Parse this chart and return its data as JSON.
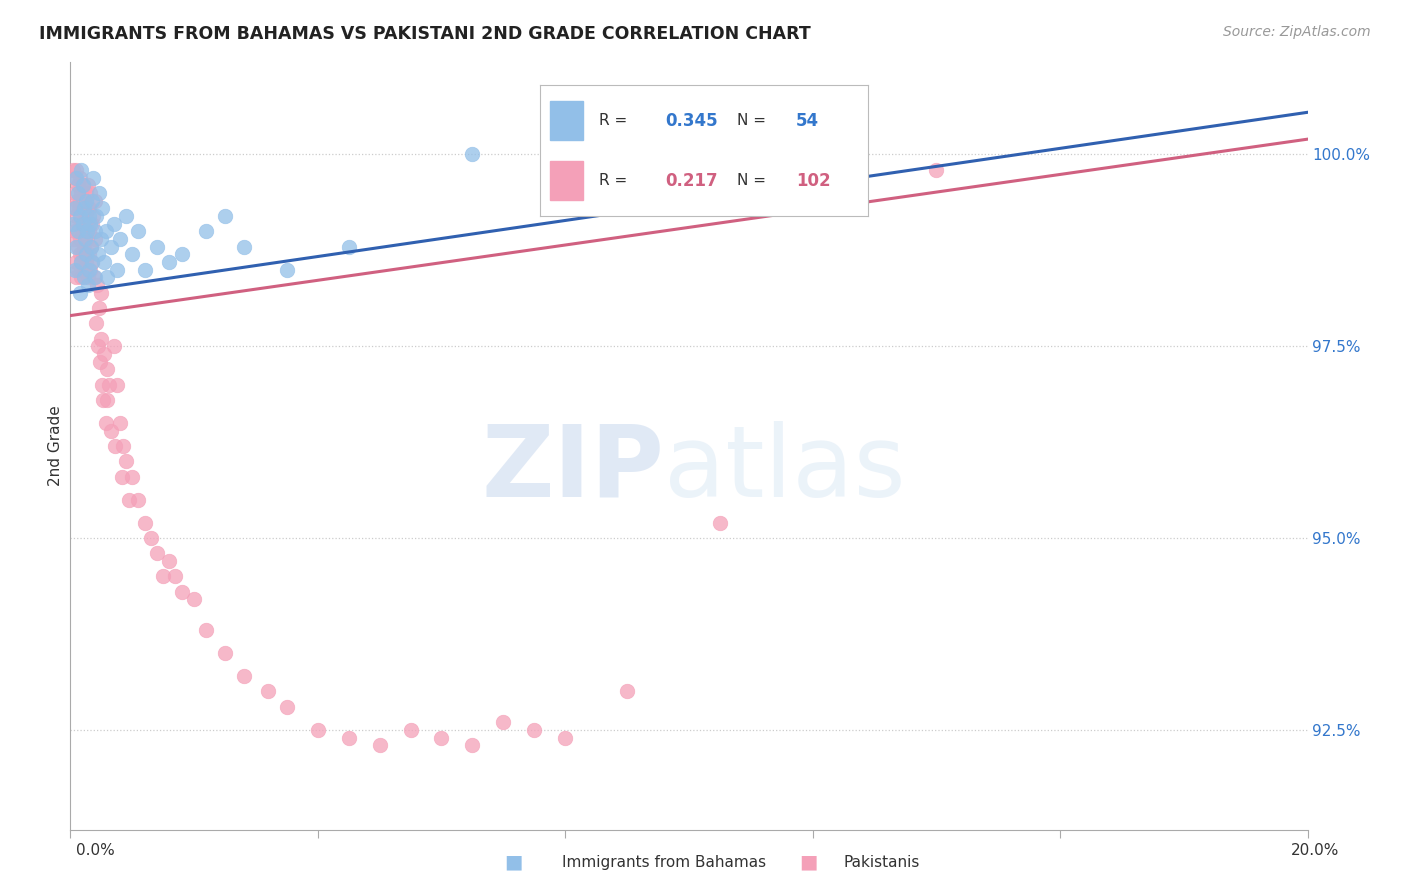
{
  "title": "IMMIGRANTS FROM BAHAMAS VS PAKISTANI 2ND GRADE CORRELATION CHART",
  "source": "Source: ZipAtlas.com",
  "ylabel": "2nd Grade",
  "xmin": 0.0,
  "xmax": 20.0,
  "ymin": 91.2,
  "ymax": 101.2,
  "blue_color": "#92bfe8",
  "pink_color": "#f4a0b8",
  "blue_line_color": "#3060b0",
  "pink_line_color": "#d06080",
  "blue_R": 0.345,
  "blue_N": 54,
  "pink_R": 0.217,
  "pink_N": 102,
  "blue_scatter_x": [
    0.05,
    0.07,
    0.08,
    0.1,
    0.1,
    0.12,
    0.13,
    0.15,
    0.15,
    0.17,
    0.18,
    0.2,
    0.2,
    0.22,
    0.22,
    0.23,
    0.25,
    0.25,
    0.27,
    0.28,
    0.3,
    0.3,
    0.32,
    0.33,
    0.35,
    0.35,
    0.37,
    0.4,
    0.4,
    0.42,
    0.45,
    0.47,
    0.5,
    0.52,
    0.55,
    0.58,
    0.6,
    0.65,
    0.7,
    0.75,
    0.8,
    0.9,
    1.0,
    1.1,
    1.2,
    1.4,
    1.6,
    1.8,
    2.2,
    2.5,
    2.8,
    3.5,
    4.5,
    6.5
  ],
  "blue_scatter_y": [
    99.1,
    98.5,
    99.3,
    98.8,
    99.7,
    99.0,
    99.5,
    98.2,
    99.2,
    98.6,
    99.8,
    99.1,
    99.6,
    98.4,
    99.3,
    98.9,
    99.4,
    98.7,
    99.0,
    98.3,
    99.2,
    98.5,
    99.1,
    98.8,
    99.4,
    98.6,
    99.7,
    99.0,
    98.4,
    99.2,
    98.7,
    99.5,
    98.9,
    99.3,
    98.6,
    99.0,
    98.4,
    98.8,
    99.1,
    98.5,
    98.9,
    99.2,
    98.7,
    99.0,
    98.5,
    98.8,
    98.6,
    98.7,
    99.0,
    99.2,
    98.8,
    98.5,
    98.8,
    100.0
  ],
  "pink_scatter_x": [
    0.03,
    0.05,
    0.06,
    0.07,
    0.08,
    0.08,
    0.09,
    0.1,
    0.1,
    0.1,
    0.11,
    0.12,
    0.12,
    0.13,
    0.13,
    0.14,
    0.15,
    0.15,
    0.15,
    0.16,
    0.17,
    0.17,
    0.18,
    0.18,
    0.2,
    0.2,
    0.2,
    0.22,
    0.22,
    0.23,
    0.23,
    0.25,
    0.25,
    0.25,
    0.27,
    0.27,
    0.28,
    0.28,
    0.3,
    0.3,
    0.3,
    0.32,
    0.32,
    0.33,
    0.35,
    0.35,
    0.37,
    0.38,
    0.4,
    0.4,
    0.42,
    0.43,
    0.45,
    0.47,
    0.48,
    0.5,
    0.5,
    0.52,
    0.53,
    0.55,
    0.58,
    0.6,
    0.6,
    0.63,
    0.65,
    0.7,
    0.73,
    0.75,
    0.8,
    0.83,
    0.85,
    0.9,
    0.95,
    1.0,
    1.1,
    1.2,
    1.3,
    1.4,
    1.5,
    1.6,
    1.7,
    1.8,
    2.0,
    2.2,
    2.5,
    2.8,
    3.2,
    3.5,
    4.0,
    4.5,
    5.0,
    5.5,
    6.0,
    6.5,
    7.0,
    7.5,
    8.0,
    9.0,
    10.5,
    11.0,
    12.5,
    14.0
  ],
  "pink_scatter_y": [
    99.3,
    99.8,
    98.9,
    99.5,
    99.0,
    99.7,
    98.6,
    99.2,
    99.8,
    98.4,
    99.4,
    98.8,
    99.6,
    99.1,
    98.5,
    99.3,
    99.7,
    98.7,
    99.4,
    98.9,
    99.5,
    98.6,
    99.2,
    98.4,
    99.6,
    99.0,
    98.7,
    99.4,
    98.8,
    99.1,
    98.5,
    99.5,
    99.2,
    98.6,
    99.3,
    98.9,
    99.6,
    98.4,
    99.0,
    98.7,
    99.3,
    99.5,
    98.5,
    98.8,
    99.1,
    98.6,
    99.2,
    98.4,
    99.4,
    98.9,
    97.8,
    98.3,
    97.5,
    98.0,
    97.3,
    98.2,
    97.6,
    97.0,
    96.8,
    97.4,
    96.5,
    97.2,
    96.8,
    97.0,
    96.4,
    97.5,
    96.2,
    97.0,
    96.5,
    95.8,
    96.2,
    96.0,
    95.5,
    95.8,
    95.5,
    95.2,
    95.0,
    94.8,
    94.5,
    94.7,
    94.5,
    94.3,
    94.2,
    93.8,
    93.5,
    93.2,
    93.0,
    92.8,
    92.5,
    92.4,
    92.3,
    92.5,
    92.4,
    92.3,
    92.6,
    92.5,
    92.4,
    93.0,
    95.2,
    99.5,
    100.0,
    99.8
  ]
}
